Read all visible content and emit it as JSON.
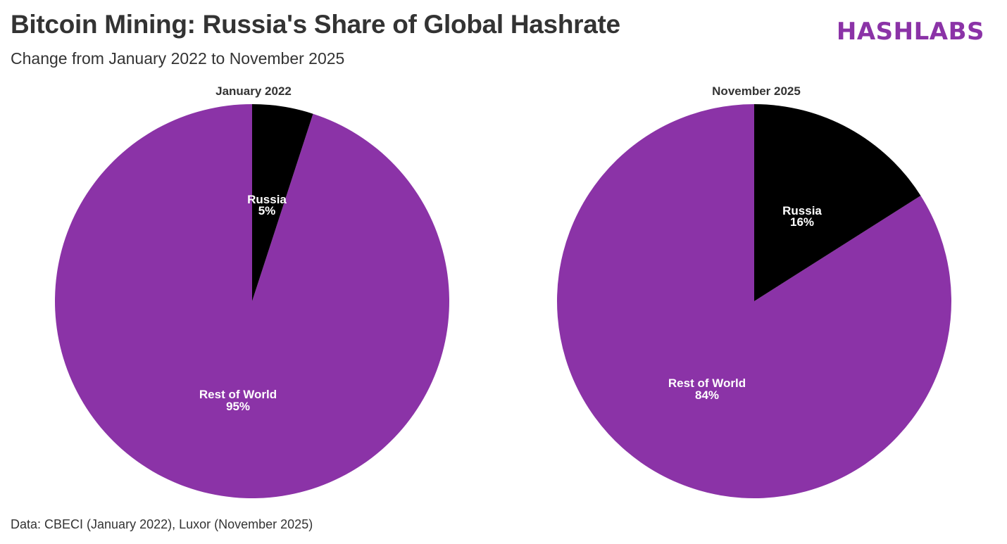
{
  "header": {
    "title": "Bitcoin Mining: Russia's Share of Global Hashrate",
    "subtitle": "Change from January 2022 to November 2025",
    "logo": "HASHLABS"
  },
  "footer": {
    "source": "Data: CBECI (January 2022), Luxor (November 2025)"
  },
  "colors": {
    "russia": "#000000",
    "rest_of_world": "#8b33a7",
    "brand": "#8b33a7",
    "text": "#333333"
  },
  "chart_data": [
    {
      "type": "pie",
      "title": "January 2022",
      "labels": [
        "Russia",
        "Rest of World"
      ],
      "values": [
        5,
        95
      ],
      "value_labels": [
        "5%",
        "95%"
      ],
      "colors": [
        "#000000",
        "#8b33a7"
      ],
      "start_angle": "12 o'clock, clockwise"
    },
    {
      "type": "pie",
      "title": "November 2025",
      "labels": [
        "Russia",
        "Rest of World"
      ],
      "values": [
        16,
        84
      ],
      "value_labels": [
        "16%",
        "84%"
      ],
      "colors": [
        "#000000",
        "#8b33a7"
      ],
      "start_angle": "12 o'clock, clockwise"
    }
  ]
}
